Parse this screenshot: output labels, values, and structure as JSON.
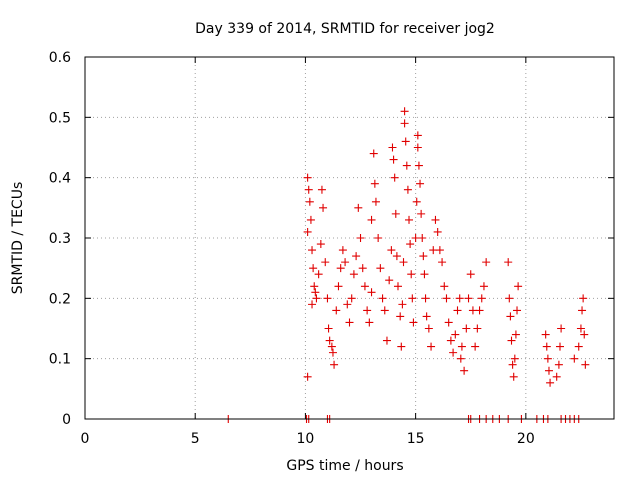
{
  "chart_data": {
    "type": "scatter",
    "title": "Day 339 of 2014, SRMTID for receiver jog2",
    "xlabel": "GPS time / hours",
    "ylabel": "SRMTID / TECUs",
    "xlim": [
      0,
      24
    ],
    "ylim": [
      0,
      0.6
    ],
    "xticks": [
      0,
      5,
      10,
      15,
      20
    ],
    "yticks": [
      0,
      0.1,
      0.2,
      0.3,
      0.4,
      0.5,
      0.6
    ],
    "ytick_labels": [
      "0",
      "0.1",
      "0.2",
      "0.3",
      "0.4",
      "0.5",
      "0.6"
    ],
    "grid": true,
    "marker": "+",
    "color": "#e00000",
    "series": [
      {
        "name": "SRMTID",
        "points": [
          [
            10.1,
            0.07
          ],
          [
            10.1,
            0.4
          ],
          [
            10.15,
            0.38
          ],
          [
            10.2,
            0.36
          ],
          [
            10.25,
            0.33
          ],
          [
            10.1,
            0.31
          ],
          [
            10.3,
            0.28
          ],
          [
            10.35,
            0.25
          ],
          [
            10.4,
            0.22
          ],
          [
            10.45,
            0.21
          ],
          [
            10.5,
            0.2
          ],
          [
            10.3,
            0.19
          ],
          [
            10.6,
            0.24
          ],
          [
            10.7,
            0.29
          ],
          [
            10.75,
            0.38
          ],
          [
            10.8,
            0.35
          ],
          [
            10.9,
            0.26
          ],
          [
            11.0,
            0.2
          ],
          [
            11.05,
            0.15
          ],
          [
            11.1,
            0.13
          ],
          [
            11.2,
            0.12
          ],
          [
            11.25,
            0.11
          ],
          [
            11.3,
            0.09
          ],
          [
            11.4,
            0.18
          ],
          [
            11.5,
            0.22
          ],
          [
            11.6,
            0.25
          ],
          [
            11.7,
            0.28
          ],
          [
            11.8,
            0.26
          ],
          [
            11.9,
            0.19
          ],
          [
            12.0,
            0.16
          ],
          [
            12.1,
            0.2
          ],
          [
            12.2,
            0.24
          ],
          [
            12.3,
            0.27
          ],
          [
            12.4,
            0.35
          ],
          [
            12.5,
            0.3
          ],
          [
            12.6,
            0.25
          ],
          [
            12.7,
            0.22
          ],
          [
            12.8,
            0.18
          ],
          [
            12.9,
            0.16
          ],
          [
            13.0,
            0.21
          ],
          [
            13.0,
            0.33
          ],
          [
            13.1,
            0.44
          ],
          [
            13.15,
            0.39
          ],
          [
            13.2,
            0.36
          ],
          [
            13.3,
            0.3
          ],
          [
            13.4,
            0.25
          ],
          [
            13.5,
            0.2
          ],
          [
            13.6,
            0.18
          ],
          [
            13.7,
            0.13
          ],
          [
            13.8,
            0.23
          ],
          [
            13.9,
            0.28
          ],
          [
            13.95,
            0.45
          ],
          [
            14.0,
            0.43
          ],
          [
            14.05,
            0.4
          ],
          [
            14.1,
            0.34
          ],
          [
            14.15,
            0.27
          ],
          [
            14.2,
            0.22
          ],
          [
            14.3,
            0.17
          ],
          [
            14.35,
            0.12
          ],
          [
            14.4,
            0.19
          ],
          [
            14.45,
            0.26
          ],
          [
            14.5,
            0.51
          ],
          [
            14.5,
            0.49
          ],
          [
            14.55,
            0.46
          ],
          [
            14.6,
            0.42
          ],
          [
            14.65,
            0.38
          ],
          [
            14.7,
            0.33
          ],
          [
            14.75,
            0.29
          ],
          [
            14.8,
            0.24
          ],
          [
            14.85,
            0.2
          ],
          [
            14.9,
            0.16
          ],
          [
            15.0,
            0.3
          ],
          [
            15.05,
            0.36
          ],
          [
            15.1,
            0.47
          ],
          [
            15.1,
            0.45
          ],
          [
            15.15,
            0.42
          ],
          [
            15.2,
            0.39
          ],
          [
            15.25,
            0.34
          ],
          [
            15.3,
            0.3
          ],
          [
            15.35,
            0.27
          ],
          [
            15.4,
            0.24
          ],
          [
            15.45,
            0.2
          ],
          [
            15.5,
            0.17
          ],
          [
            15.6,
            0.15
          ],
          [
            15.7,
            0.12
          ],
          [
            15.8,
            0.28
          ],
          [
            15.9,
            0.33
          ],
          [
            16.0,
            0.31
          ],
          [
            16.1,
            0.28
          ],
          [
            16.2,
            0.26
          ],
          [
            16.3,
            0.22
          ],
          [
            16.4,
            0.2
          ],
          [
            16.5,
            0.16
          ],
          [
            16.6,
            0.13
          ],
          [
            16.7,
            0.11
          ],
          [
            16.8,
            0.14
          ],
          [
            16.9,
            0.18
          ],
          [
            17.0,
            0.2
          ],
          [
            17.05,
            0.1
          ],
          [
            17.1,
            0.12
          ],
          [
            17.2,
            0.08
          ],
          [
            17.3,
            0.15
          ],
          [
            17.4,
            0.2
          ],
          [
            17.5,
            0.24
          ],
          [
            17.6,
            0.18
          ],
          [
            17.7,
            0.12
          ],
          [
            17.8,
            0.15
          ],
          [
            17.9,
            0.18
          ],
          [
            18.0,
            0.2
          ],
          [
            18.1,
            0.22
          ],
          [
            18.2,
            0.26
          ],
          [
            19.2,
            0.26
          ],
          [
            19.25,
            0.2
          ],
          [
            19.3,
            0.17
          ],
          [
            19.35,
            0.13
          ],
          [
            19.4,
            0.09
          ],
          [
            19.45,
            0.07
          ],
          [
            19.5,
            0.1
          ],
          [
            19.55,
            0.14
          ],
          [
            19.6,
            0.18
          ],
          [
            19.65,
            0.22
          ],
          [
            20.9,
            0.14
          ],
          [
            20.95,
            0.12
          ],
          [
            21.0,
            0.1
          ],
          [
            21.05,
            0.08
          ],
          [
            21.1,
            0.06
          ],
          [
            21.4,
            0.07
          ],
          [
            21.5,
            0.09
          ],
          [
            21.55,
            0.12
          ],
          [
            21.6,
            0.15
          ],
          [
            22.2,
            0.1
          ],
          [
            22.4,
            0.12
          ],
          [
            22.5,
            0.15
          ],
          [
            22.55,
            0.18
          ],
          [
            22.6,
            0.2
          ],
          [
            22.65,
            0.14
          ],
          [
            22.7,
            0.09
          ],
          [
            6.5,
            0.0
          ],
          [
            10.05,
            0.0
          ],
          [
            10.15,
            0.0
          ],
          [
            11.0,
            0.0
          ],
          [
            11.1,
            0.0
          ],
          [
            17.4,
            0.0
          ],
          [
            17.5,
            0.0
          ],
          [
            17.9,
            0.0
          ],
          [
            18.2,
            0.0
          ],
          [
            18.5,
            0.0
          ],
          [
            18.8,
            0.0
          ],
          [
            19.2,
            0.0
          ],
          [
            19.8,
            0.0
          ],
          [
            20.5,
            0.0
          ],
          [
            20.8,
            0.0
          ],
          [
            21.0,
            0.0
          ],
          [
            21.6,
            0.0
          ],
          [
            21.8,
            0.0
          ],
          [
            22.0,
            0.0
          ],
          [
            22.2,
            0.0
          ],
          [
            22.4,
            0.0
          ]
        ]
      }
    ]
  }
}
